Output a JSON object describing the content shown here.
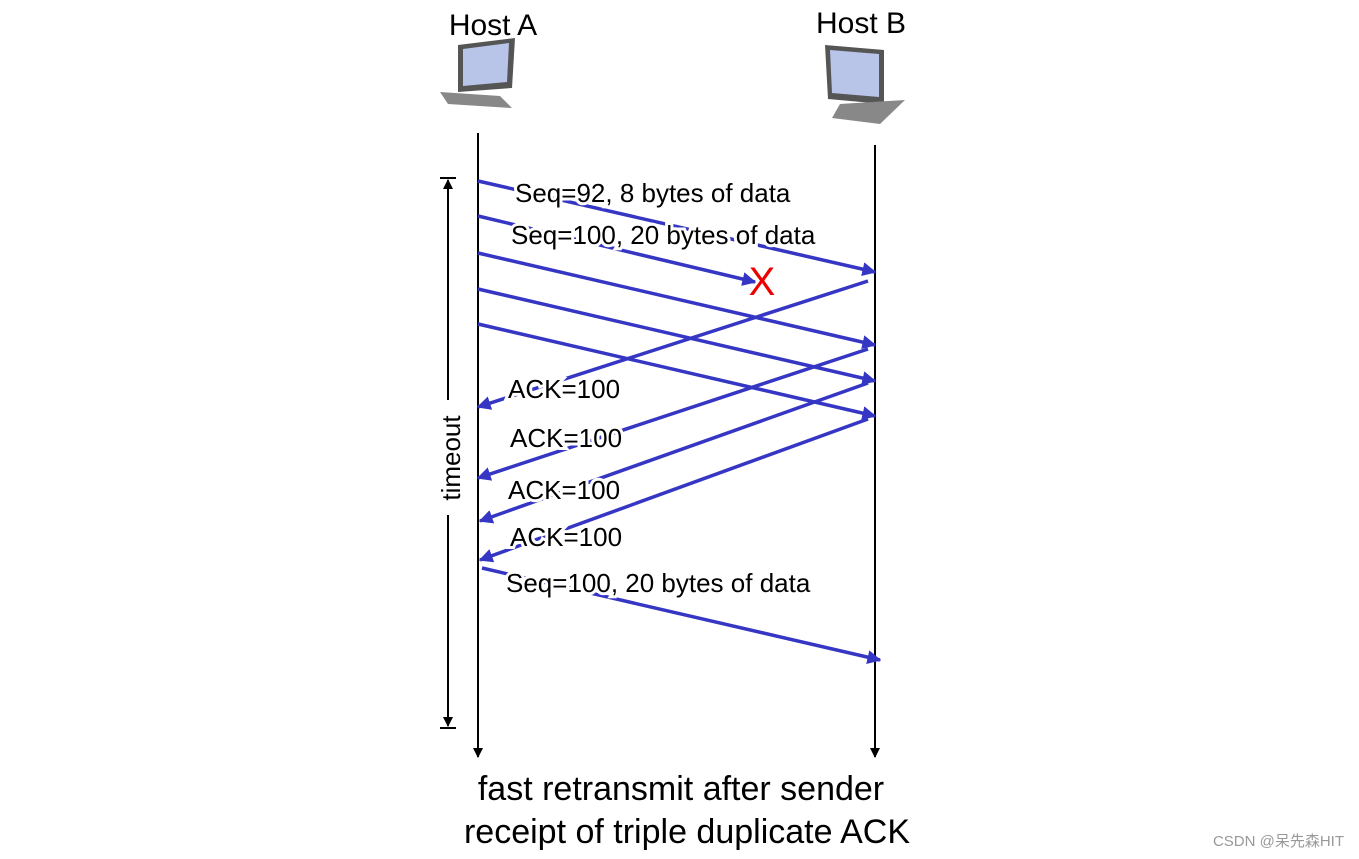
{
  "hosts": [
    {
      "label": "Host A"
    },
    {
      "label": "Host B"
    }
  ],
  "messages": [
    {
      "label": "Seq=92, 8 bytes of data"
    },
    {
      "label": "Seq=100, 20 bytes of data"
    },
    {
      "label": "ACK=100"
    },
    {
      "label": "ACK=100"
    },
    {
      "label": "ACK=100"
    },
    {
      "label": "ACK=100"
    },
    {
      "label": "Seq=100, 20 bytes of data"
    }
  ],
  "loss_marker": "X",
  "timeout_label": "timeout",
  "caption": {
    "lines": [
      "fast retransmit after sender",
      "receipt of triple duplicate ACK"
    ]
  },
  "watermark": "CSDN @呆先森HIT"
}
